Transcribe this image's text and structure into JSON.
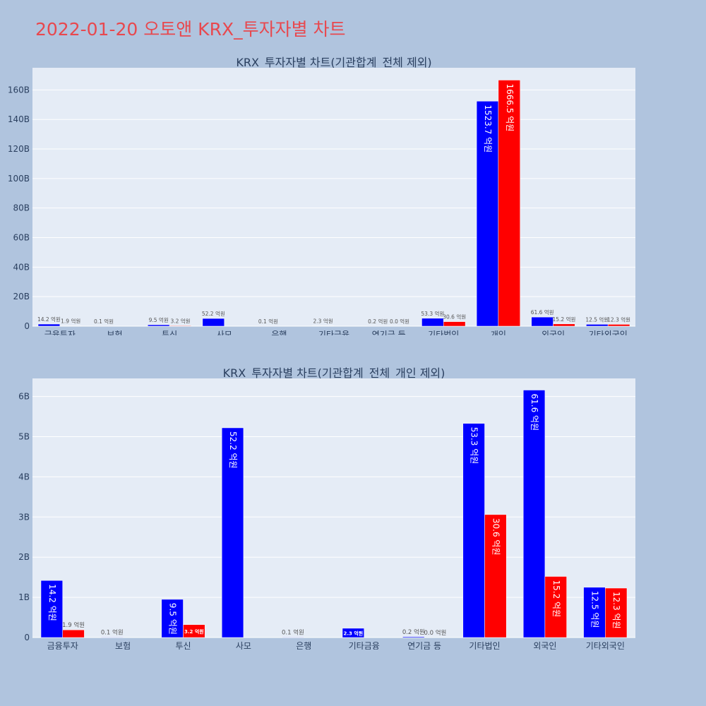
{
  "page": {
    "title": "2022-01-20 오토앤 KRX_투자자별 차트"
  },
  "colors": {
    "background": "#b0c4de",
    "plot_bg": "#e5ecf6",
    "title": "#e8484e",
    "buy": "#0000ff",
    "sell": "#ff0000"
  },
  "chart_data": [
    {
      "type": "bar",
      "title": "KRX_투자자별 차트(기관합계_전체 제외)",
      "categories": [
        "금융투자",
        "보험",
        "투신",
        "사모",
        "은행",
        "기타금융",
        "연기금 등",
        "기타법인",
        "개인",
        "외국인",
        "기타외국인"
      ],
      "series": [
        {
          "color": "#0000ff",
          "values": [
            14.2,
            0.1,
            9.5,
            52.2,
            0.1,
            2.3,
            0.2,
            53.3,
            1523.7,
            61.6,
            12.5
          ],
          "labels": [
            "14.2 억원",
            "0.1 억원",
            "9.5 억원",
            "52.2 억원",
            "0.1 억원",
            "2.3 억원",
            "0.2 억원",
            "53.3 억원",
            "1523.7 억원",
            "61.6 억원",
            "12.5 억원"
          ]
        },
        {
          "color": "#ff0000",
          "values": [
            1.9,
            0,
            3.2,
            0,
            0,
            0,
            0.0,
            30.6,
            1666.5,
            15.2,
            12.3
          ],
          "labels": [
            "1.9 억원",
            "",
            "3.2 억원",
            "",
            "",
            "",
            "0.0 억원",
            "30.6 억원",
            "1666.5 억원",
            "15.2 억원",
            "12.3 억원"
          ]
        }
      ],
      "yticks": [
        "0",
        "20B",
        "40B",
        "60B",
        "80B",
        "100B",
        "120B",
        "140B",
        "160B"
      ],
      "ytick_values": [
        0,
        200,
        400,
        600,
        800,
        1000,
        1200,
        1400,
        1600
      ],
      "ylim": [
        0,
        1750
      ],
      "grid": true
    },
    {
      "type": "bar",
      "title": "KRX_투자자별 차트(기관합계_전체_개인 제외)",
      "categories": [
        "금융투자",
        "보험",
        "투신",
        "사모",
        "은행",
        "기타금융",
        "연기금 등",
        "기타법인",
        "외국인",
        "기타외국인"
      ],
      "series": [
        {
          "color": "#0000ff",
          "values": [
            14.2,
            0.1,
            9.5,
            52.2,
            0.1,
            2.3,
            0.2,
            53.3,
            61.6,
            12.5
          ],
          "labels": [
            "14.2 억원",
            "0.1 억원",
            "9.5 억원",
            "52.2 억원",
            "0.1 억원",
            "2.3 억원",
            "0.2 억원",
            "53.3 억원",
            "61.6 억원",
            "12.5 억원"
          ]
        },
        {
          "color": "#ff0000",
          "values": [
            1.9,
            0,
            3.2,
            0,
            0,
            0,
            0.0,
            30.6,
            15.2,
            12.3
          ],
          "labels": [
            "1.9 억원",
            "",
            "3.2 억원",
            "",
            "",
            "",
            "0.0 억원",
            "30.6 억원",
            "15.2 억원",
            "12.3 억원"
          ]
        }
      ],
      "yticks": [
        "0",
        "1B",
        "2B",
        "3B",
        "4B",
        "5B",
        "6B"
      ],
      "ytick_values": [
        0,
        10,
        20,
        30,
        40,
        50,
        60
      ],
      "ylim": [
        0,
        64.5
      ],
      "grid": true
    }
  ]
}
